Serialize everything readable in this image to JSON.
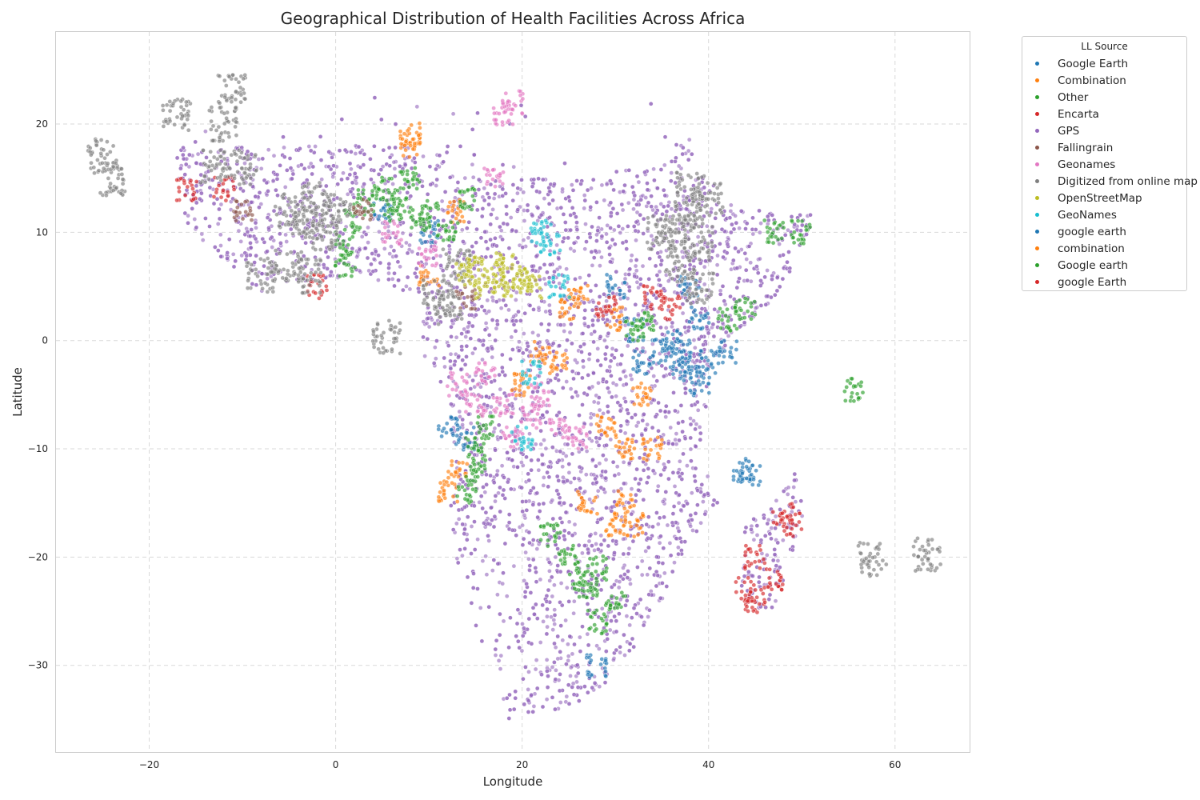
{
  "chart_data": {
    "type": "scatter",
    "title": "Geographical Distribution of Health Facilities Across Africa",
    "xlabel": "Longitude",
    "ylabel": "Latitude",
    "xlim": [
      -30,
      68
    ],
    "ylim": [
      -38,
      28.5
    ],
    "xticks": [
      -20,
      0,
      20,
      40,
      60
    ],
    "yticks": [
      -30,
      -20,
      -10,
      0,
      10,
      20
    ],
    "xtick_labels": [
      "−20",
      "0",
      "20",
      "40",
      "60"
    ],
    "ytick_labels": [
      "−30",
      "−20",
      "−10",
      "0",
      "10",
      "20"
    ],
    "grid": true,
    "legend_position": "outside-top-right",
    "legend_title": "LL Source",
    "series": [
      {
        "name": "Google Earth",
        "color": "#1f77b4",
        "points": [
          [
            39,
            2
          ],
          [
            43.5,
            -12
          ],
          [
            44.5,
            -12.3
          ],
          [
            35,
            -1
          ],
          [
            37,
            -1
          ],
          [
            33,
            -2
          ],
          [
            30,
            5
          ],
          [
            36,
            0
          ],
          [
            38,
            -3
          ],
          [
            40,
            -2
          ],
          [
            42,
            -1
          ],
          [
            5,
            12
          ],
          [
            10,
            10
          ],
          [
            28,
            -30
          ],
          [
            32,
            1
          ],
          [
            38,
            5
          ],
          [
            14,
            -9
          ],
          [
            12,
            -8
          ]
        ]
      },
      {
        "name": "Combination",
        "color": "#ff7f0e",
        "points": [
          [
            8,
            18
          ],
          [
            8,
            19
          ],
          [
            12,
            -14
          ],
          [
            13,
            -12
          ],
          [
            34,
            -10
          ],
          [
            31,
            -10
          ],
          [
            30,
            2
          ],
          [
            25,
            3
          ],
          [
            22,
            -1
          ],
          [
            10,
            6
          ],
          [
            13,
            12
          ],
          [
            20,
            -4
          ],
          [
            32,
            -17
          ],
          [
            30,
            -17
          ],
          [
            27,
            -15
          ],
          [
            31,
            -15
          ],
          [
            24,
            -2
          ],
          [
            26,
            4
          ]
        ]
      },
      {
        "name": "Other",
        "color": "#2ca02c",
        "points": [
          [
            1,
            9
          ],
          [
            1,
            7
          ],
          [
            2,
            11
          ],
          [
            5,
            14
          ],
          [
            7,
            13
          ],
          [
            10,
            12
          ],
          [
            12,
            10
          ],
          [
            14,
            13
          ],
          [
            8,
            15
          ],
          [
            15,
            -10
          ],
          [
            15,
            -12
          ],
          [
            14,
            -14
          ],
          [
            16,
            -8
          ],
          [
            26,
            -22
          ],
          [
            27,
            -23
          ],
          [
            28,
            -21
          ],
          [
            25,
            -20
          ],
          [
            23,
            -18
          ],
          [
            47,
            10
          ],
          [
            50,
            10
          ],
          [
            44,
            3
          ],
          [
            42,
            2
          ],
          [
            33,
            2
          ],
          [
            32,
            1
          ],
          [
            6,
            12
          ],
          [
            3,
            13
          ],
          [
            9,
            11
          ],
          [
            55.5,
            -4.6
          ]
        ]
      },
      {
        "name": "Encarta",
        "color": "#d62728",
        "points": [
          [
            -16,
            14
          ],
          [
            -12,
            14
          ],
          [
            45,
            -20
          ],
          [
            48,
            -16
          ],
          [
            49,
            -17
          ],
          [
            45,
            -24
          ],
          [
            47,
            -22
          ],
          [
            44,
            -23
          ],
          [
            29,
            3
          ],
          [
            -2,
            5
          ]
        ]
      },
      {
        "name": "GPS",
        "color": "#9467bd",
        "points": []
      },
      {
        "name": "Fallingrain",
        "color": "#8c564b",
        "points": [
          [
            -10,
            12
          ],
          [
            3,
            12
          ],
          [
            14,
            4
          ]
        ]
      },
      {
        "name": "Geonames",
        "color": "#e377c2",
        "points": [
          [
            13,
            -4
          ],
          [
            15,
            -6
          ],
          [
            18,
            -6
          ],
          [
            21,
            -7
          ],
          [
            24,
            -8
          ],
          [
            22,
            -5
          ],
          [
            19,
            -9
          ],
          [
            6,
            10
          ],
          [
            10,
            8
          ],
          [
            18,
            21
          ],
          [
            19,
            22
          ],
          [
            17,
            15
          ],
          [
            16,
            -3
          ],
          [
            26,
            -9
          ]
        ]
      },
      {
        "name": "Digitized from online map",
        "color": "#7f7f7f",
        "points": [
          [
            -12,
            20
          ],
          [
            -11,
            23
          ],
          [
            -25,
            17
          ],
          [
            -24,
            15
          ],
          [
            -13,
            16
          ],
          [
            -10,
            16
          ],
          [
            -5,
            12
          ],
          [
            -3,
            11
          ],
          [
            -2,
            13
          ],
          [
            0,
            12
          ],
          [
            -5,
            7
          ],
          [
            -3,
            6
          ],
          [
            11,
            4
          ],
          [
            12,
            3
          ],
          [
            13,
            7
          ],
          [
            38,
            12
          ],
          [
            39,
            9
          ],
          [
            37,
            7
          ],
          [
            36,
            10
          ],
          [
            40,
            13
          ],
          [
            38,
            14
          ],
          [
            57.5,
            -20.2
          ],
          [
            63.4,
            -19.7
          ],
          [
            35,
            10
          ],
          [
            39,
            5
          ],
          [
            -17,
            21
          ],
          [
            -1,
            10
          ],
          [
            -8,
            6
          ],
          [
            5.5,
            0.3
          ]
        ]
      },
      {
        "name": "OpenStreetMap",
        "color": "#bcbd22",
        "points": [
          [
            15,
            7
          ],
          [
            17,
            6
          ],
          [
            18,
            7
          ],
          [
            19,
            5
          ],
          [
            16,
            5
          ],
          [
            20,
            6
          ],
          [
            14,
            6
          ],
          [
            21,
            5
          ]
        ]
      },
      {
        "name": "GeoNames",
        "color": "#17becf",
        "points": [
          [
            22,
            10
          ],
          [
            23,
            9
          ],
          [
            24,
            5
          ],
          [
            20,
            -9
          ],
          [
            21,
            -3
          ]
        ]
      },
      {
        "name": "google earth",
        "color": "#1f77b4",
        "points": [
          [
            37,
            -2
          ],
          [
            39,
            -4
          ]
        ]
      },
      {
        "name": "combination",
        "color": "#ff7f0e",
        "points": [
          [
            33,
            -5
          ],
          [
            29,
            -8
          ]
        ]
      },
      {
        "name": "Google earth",
        "color": "#2ca02c",
        "points": [
          [
            30,
            -24
          ],
          [
            28,
            -26
          ]
        ]
      },
      {
        "name": "google Earth",
        "color": "#d62728",
        "points": [
          [
            34,
            4
          ],
          [
            36,
            3
          ]
        ]
      }
    ]
  }
}
